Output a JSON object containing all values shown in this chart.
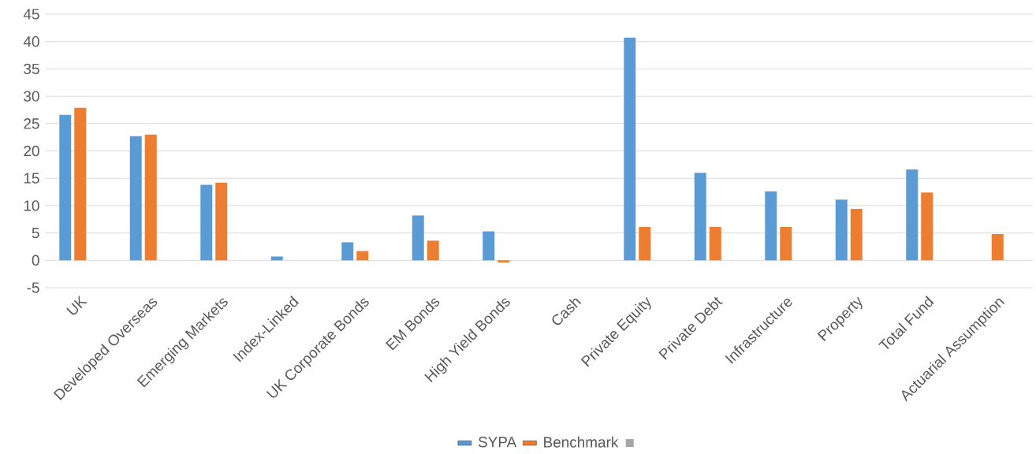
{
  "chart_data": {
    "type": "bar",
    "categories": [
      "UK",
      "Developed Overseas",
      "Emerging Markets",
      "Index-Linked",
      "UK Corporate Bonds",
      "EM Bonds",
      "High Yield Bonds",
      "Cash",
      "Private Equity",
      "Private Debt",
      "Infrastructure",
      "Property",
      "Total Fund",
      "Actuarial Assumption"
    ],
    "series": [
      {
        "name": "SYPA",
        "color": "#5b9bd5",
        "values": [
          26.6,
          22.7,
          13.8,
          0.7,
          3.3,
          8.2,
          5.3,
          null,
          40.7,
          16.0,
          12.6,
          11.1,
          16.6,
          null
        ]
      },
      {
        "name": "Benchmark",
        "color": "#ed7d31",
        "values": [
          27.9,
          23.0,
          14.2,
          null,
          1.7,
          3.6,
          -0.4,
          null,
          6.1,
          6.1,
          6.1,
          9.4,
          12.4,
          4.8
        ]
      },
      {
        "color": "#a5a5a5",
        "values": [
          null,
          null,
          null,
          null,
          null,
          null,
          null,
          null,
          null,
          null,
          null,
          null,
          null,
          null
        ]
      }
    ],
    "ylim": [
      -5,
      45
    ],
    "yticks": [
      -5,
      0,
      5,
      10,
      15,
      20,
      25,
      30,
      35,
      40,
      45
    ],
    "grid": "y",
    "legend": "bottom"
  }
}
